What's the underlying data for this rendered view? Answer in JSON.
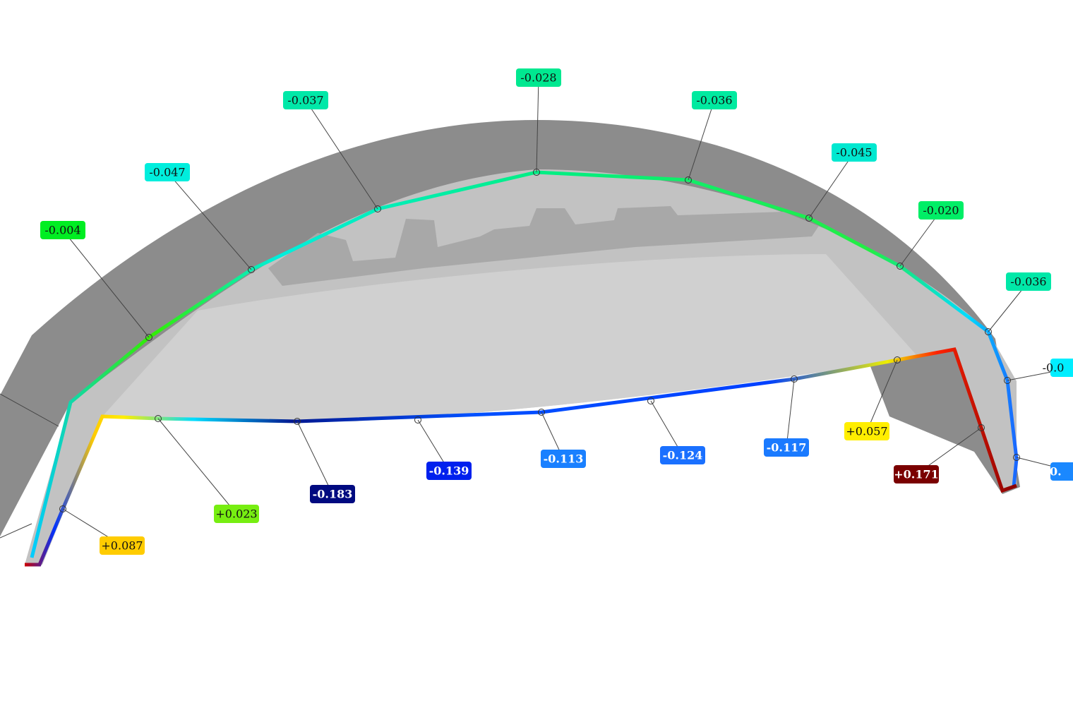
{
  "annotations": [
    {
      "label": "-0.004"
    },
    {
      "label": "-0.047"
    },
    {
      "label": "-0.037"
    },
    {
      "label": "-0.028"
    },
    {
      "label": "-0.036"
    },
    {
      "label": "-0.045"
    },
    {
      "label": "-0.020"
    },
    {
      "label": "-0.036"
    },
    {
      "label": "-0.0"
    },
    {
      "label": "-0."
    },
    {
      "label": "+0.171"
    },
    {
      "label": "+0.057"
    },
    {
      "label": "-0.117"
    },
    {
      "label": "-0.124"
    },
    {
      "label": "-0.113"
    },
    {
      "label": "-0.139"
    },
    {
      "label": "-0.183"
    },
    {
      "label": "+0.023"
    },
    {
      "label": "+0.087"
    }
  ]
}
